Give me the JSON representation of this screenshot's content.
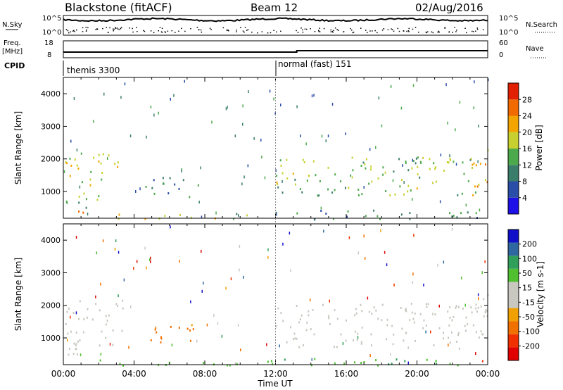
{
  "header": {
    "station": "Blackstone (fitACF)",
    "beam": "Beam 12",
    "date": "02/Aug/2016"
  },
  "noise_panel": {
    "left_label": "N.Sky",
    "left_ticks": [
      "10^5",
      "10^0"
    ],
    "right_ticks": [
      "10^5",
      "10^0"
    ],
    "right_label": "N.Search"
  },
  "freq_panel": {
    "left_label_line1": "Freq.",
    "left_label_line2": "[MHz]",
    "left_ticks": [
      "18",
      "8"
    ],
    "right_ticks": [
      "60",
      "0"
    ],
    "right_label": "Nave"
  },
  "cpid_panel": {
    "label": "CPID",
    "modes": [
      {
        "name": "themis 3300",
        "start_hour": 0
      },
      {
        "name": "normal (fast) 151",
        "start_hour": 12
      }
    ]
  },
  "x_axis": {
    "title": "Time UT",
    "ticks": [
      "00:00",
      "04:00",
      "08:00",
      "12:00",
      "16:00",
      "20:00",
      "00:00"
    ]
  },
  "colors": {
    "power_scale": [
      "#1e10e6",
      "#2a4da8",
      "#3b7d6b",
      "#4caa4c",
      "#c8d030",
      "#f2a400",
      "#f06a00",
      "#e02000"
    ],
    "velocity_scale": [
      "#e00000",
      "#f03000",
      "#f07000",
      "#f0a000",
      "#c8c8c0",
      "#c8c8c0",
      "#50c030",
      "#2f9f5a",
      "#2f68a0",
      "#1010c8"
    ],
    "ground_scatter": "#c8c8c0"
  },
  "chart_data": [
    {
      "type": "heatmap",
      "title": "",
      "xlabel": "Time UT",
      "ylabel": "Slant Range [km]",
      "xlim": [
        0,
        24
      ],
      "ylim": [
        180,
        4500
      ],
      "yticks": [
        1000,
        2000,
        3000,
        4000
      ],
      "colorbar": {
        "label": "Power [dB]",
        "ticks": [
          4,
          8,
          12,
          16,
          20,
          24,
          28
        ],
        "range": [
          0,
          32
        ]
      },
      "echo_regions": [
        {
          "t0": 0.0,
          "t1": 3.4,
          "r0": 1200,
          "r1": 2200,
          "power": 18
        },
        {
          "t0": 0.0,
          "t1": 2.0,
          "r0": 500,
          "r1": 1100,
          "power": 14
        },
        {
          "t0": 0.8,
          "t1": 2.0,
          "r0": 250,
          "r1": 450,
          "power": 28
        },
        {
          "t0": 3.0,
          "t1": 11.8,
          "r0": 180,
          "r1": 350,
          "power": 16
        },
        {
          "t0": 4.6,
          "t1": 7.6,
          "r0": 850,
          "r1": 1450,
          "power": 10
        },
        {
          "t0": 12.0,
          "t1": 24.0,
          "r0": 900,
          "r1": 2100,
          "power": 16
        },
        {
          "t0": 12.0,
          "t1": 24.0,
          "r0": 180,
          "r1": 450,
          "power": 10
        },
        {
          "t0": 23.0,
          "t1": 24.0,
          "r0": 1100,
          "r1": 2500,
          "power": 22
        }
      ]
    },
    {
      "type": "heatmap",
      "title": "",
      "xlabel": "Time UT",
      "ylabel": "Slant Range [km]",
      "xlim": [
        0,
        24
      ],
      "ylim": [
        180,
        4500
      ],
      "yticks": [
        1000,
        2000,
        3000,
        4000
      ],
      "colorbar": {
        "label": "Velocity [m s-1]",
        "ticks": [
          200,
          100,
          50,
          15,
          -15,
          -50,
          -100,
          -200
        ]
      },
      "echo_regions": [
        {
          "t0": 0.0,
          "t1": 3.4,
          "r0": 500,
          "r1": 2200,
          "velocity": 0
        },
        {
          "t0": 4.6,
          "t1": 7.6,
          "r0": 850,
          "r1": 1450,
          "velocity": -60
        },
        {
          "t0": 0.0,
          "t1": 12.0,
          "r0": 180,
          "r1": 350,
          "velocity": 30
        },
        {
          "t0": 12.0,
          "t1": 24.0,
          "r0": 700,
          "r1": 2100,
          "velocity": 0
        },
        {
          "t0": 12.0,
          "t1": 24.0,
          "r0": 180,
          "r1": 400,
          "velocity": 40
        },
        {
          "t0": 22.5,
          "t1": 23.8,
          "r0": 250,
          "r1": 400,
          "velocity": -120
        },
        {
          "t0": 23.0,
          "t1": 24.0,
          "r0": 1100,
          "r1": 2500,
          "velocity": 0
        }
      ]
    }
  ]
}
